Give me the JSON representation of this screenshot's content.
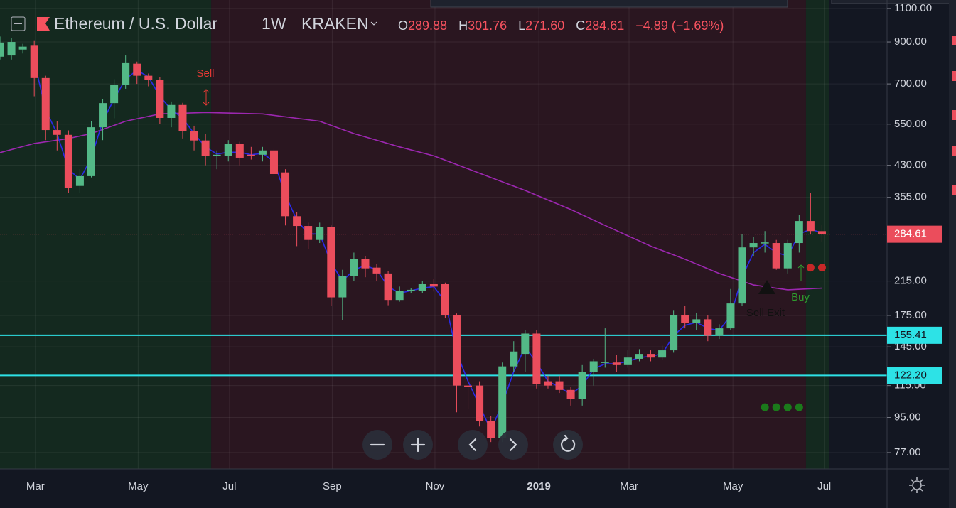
{
  "header": {
    "symbol": "Ethereum / U.S. Dollar",
    "interval": "1W",
    "exchange": "KRAKEN",
    "ohlc": [
      {
        "key": "O",
        "label": "289.88"
      },
      {
        "key": "H",
        "label": "301.76"
      },
      {
        "key": "L",
        "label": "271.60"
      },
      {
        "key": "C",
        "label": "284.61"
      }
    ],
    "change": "−4.89 (−1.69%)"
  },
  "chart_data": {
    "type": "candlestick",
    "yscale": "log",
    "grid": true,
    "up_color": "#53b987",
    "down_color": "#eb4d5c",
    "xlim": [
      0,
      77.7
    ],
    "ylim": [
      69.8,
      1157
    ],
    "yticks": [
      {
        "value": 1100,
        "label": "1100.00"
      },
      {
        "value": 900,
        "label": "900.00"
      },
      {
        "value": 700,
        "label": "700.00"
      },
      {
        "value": 550,
        "label": "550.00"
      },
      {
        "value": 430,
        "label": "430.00"
      },
      {
        "value": 355,
        "label": "355.00"
      },
      {
        "value": 215,
        "label": "215.00"
      },
      {
        "value": 175,
        "label": "175.00"
      },
      {
        "value": 145,
        "label": "145.00"
      },
      {
        "value": 115,
        "label": "115.00"
      },
      {
        "value": 95,
        "label": "95.00"
      },
      {
        "value": 77,
        "label": "77.00"
      }
    ],
    "xticks": [
      {
        "value": 3.1,
        "label": "Mar"
      },
      {
        "value": 12.1,
        "label": "May"
      },
      {
        "value": 20.1,
        "label": "Jul"
      },
      {
        "value": 29.1,
        "label": "Sep"
      },
      {
        "value": 38.1,
        "label": "Nov"
      },
      {
        "value": 47.2,
        "label": "2019"
      },
      {
        "value": 55.1,
        "label": "Mar"
      },
      {
        "value": 64.2,
        "label": "May"
      },
      {
        "value": 72.2,
        "label": "Jul"
      }
    ],
    "zones": [
      {
        "from": 0,
        "to": 18.5,
        "color": "#14291f"
      },
      {
        "from": 18.5,
        "to": 70.6,
        "color": "#2a1620"
      },
      {
        "from": 70.6,
        "to": 72.6,
        "color": "#14291f"
      }
    ],
    "candles": {
      "x": [
        0,
        1,
        2,
        3,
        4,
        5,
        6,
        7,
        8,
        9,
        10,
        11,
        12,
        13,
        14,
        15,
        16,
        17,
        18,
        19,
        20,
        21,
        22,
        23,
        24,
        25,
        26,
        27,
        28,
        29,
        30,
        31,
        32,
        33,
        34,
        35,
        36,
        37,
        38,
        39,
        40,
        41,
        42,
        43,
        44,
        45,
        46,
        47,
        48,
        49,
        50,
        51,
        52,
        53,
        54,
        55,
        56,
        57,
        58,
        59,
        60,
        61,
        62,
        63,
        64,
        65,
        66,
        67,
        68,
        69,
        70,
        71,
        72
      ],
      "open": [
        824,
        830,
        860,
        880,
        725,
        531,
        516,
        380,
        403,
        540,
        624,
        695,
        790,
        735,
        716,
        571,
        617,
        527,
        499,
        454,
        454,
        488,
        458,
        458,
        470,
        412,
        317,
        299,
        275,
        297,
        195,
        222,
        245,
        233,
        225,
        192,
        203,
        203,
        211,
        211,
        175,
        115,
        115,
        93,
        84,
        129,
        139,
        157,
        118,
        118,
        112,
        106,
        125,
        132,
        132,
        130,
        135,
        139,
        136,
        142,
        175,
        167,
        171,
        155,
        162,
        188,
        263,
        270,
        270,
        232,
        270,
        308,
        289.88
      ],
      "high": [
        930,
        920,
        890,
        905,
        735,
        560,
        530,
        420,
        560,
        640,
        720,
        830,
        800,
        745,
        730,
        630,
        625,
        545,
        520,
        470,
        500,
        495,
        480,
        480,
        475,
        420,
        325,
        305,
        305,
        300,
        230,
        255,
        250,
        238,
        228,
        208,
        206,
        215,
        218,
        213,
        177,
        120,
        118,
        96,
        132,
        150,
        160,
        160,
        122,
        122,
        114,
        130,
        135,
        162,
        138,
        142,
        143,
        142,
        146,
        180,
        185,
        178,
        175,
        166,
        205,
        285,
        280,
        290,
        275,
        275,
        320,
        365,
        301.76
      ],
      "low": [
        810,
        810,
        840,
        650,
        500,
        470,
        365,
        365,
        400,
        500,
        570,
        680,
        700,
        690,
        550,
        540,
        505,
        470,
        430,
        420,
        440,
        430,
        445,
        440,
        400,
        300,
        265,
        260,
        270,
        185,
        170,
        215,
        220,
        215,
        186,
        190,
        200,
        200,
        202,
        172,
        98,
        100,
        90,
        82,
        82,
        125,
        125,
        113,
        113,
        110,
        102,
        102,
        115,
        128,
        125,
        128,
        133,
        133,
        134,
        140,
        162,
        160,
        150,
        152,
        160,
        185,
        250,
        255,
        230,
        225,
        255,
        285,
        271.6
      ],
      "close": [
        897,
        900,
        875,
        725,
        531,
        516,
        375,
        403,
        540,
        624,
        695,
        796,
        735,
        716,
        571,
        617,
        527,
        499,
        454,
        458,
        488,
        450,
        454,
        470,
        408,
        317,
        299,
        275,
        297,
        195,
        222,
        245,
        232,
        225,
        192,
        203,
        204,
        211,
        208,
        175,
        115,
        114,
        93,
        84,
        129,
        141,
        157,
        116,
        115,
        112,
        106,
        125,
        133,
        132.5,
        130,
        136,
        139,
        136,
        142,
        175,
        167,
        171,
        155,
        162,
        188,
        263,
        270,
        271,
        232,
        270,
        308,
        290,
        284.61
      ]
    },
    "lines": [
      {
        "color": "#9c27b0",
        "x": [
          0,
          3,
          6,
          8,
          11,
          14,
          18,
          23,
          28,
          31,
          35,
          38,
          42,
          46,
          50,
          53,
          57,
          60,
          63,
          66,
          69,
          72
        ],
        "values": [
          464,
          490,
          505,
          520,
          560,
          585,
          590,
          585,
          560,
          520,
          480,
          455,
          410,
          370,
          330,
          300,
          265,
          245,
          225,
          210,
          204,
          206
        ]
      },
      {
        "color": "#2a2ae8",
        "x": [
          3,
          4,
          5,
          6,
          7,
          8,
          9,
          10,
          11,
          12,
          13,
          14,
          15,
          16,
          17,
          18,
          19,
          20,
          21,
          22,
          23,
          24,
          25,
          26,
          27,
          28,
          29,
          30,
          31,
          32,
          33,
          34,
          35,
          36,
          37,
          38,
          39,
          40,
          41,
          42,
          43,
          44,
          45,
          46,
          47,
          48,
          49,
          50,
          51,
          52,
          53,
          54,
          55,
          56,
          57,
          58,
          59,
          60,
          61,
          62,
          63,
          64,
          65,
          66,
          67,
          68,
          69,
          70,
          71,
          72
        ],
        "values": [
          800,
          600,
          520,
          420,
          395,
          450,
          560,
          640,
          720,
          760,
          730,
          650,
          600,
          570,
          520,
          480,
          460,
          465,
          465,
          458,
          462,
          440,
          360,
          310,
          285,
          285,
          240,
          215,
          230,
          236,
          230,
          208,
          200,
          203,
          206,
          208,
          190,
          140,
          118,
          102,
          88,
          103,
          125,
          145,
          132,
          118,
          114,
          109,
          115,
          127,
          131,
          131,
          133,
          136,
          137,
          139,
          155,
          165,
          168,
          162,
          160,
          175,
          220,
          255,
          268,
          255,
          250,
          285,
          293,
          287
        ]
      }
    ],
    "dots": [
      {
        "color": "#c62828",
        "x": [
          71,
          72
        ],
        "values": [
          233,
          233
        ]
      },
      {
        "color": "#1b7a1b",
        "x": [
          67,
          68,
          69,
          70
        ],
        "values": [
          101,
          101,
          101,
          101
        ]
      }
    ],
    "hlines": [
      {
        "value": 155.41,
        "label": "155.41",
        "color": "#2de2e6"
      },
      {
        "value": 122.2,
        "label": "122.20",
        "color": "#2de2e6"
      }
    ],
    "annotations": [
      {
        "text": "Sell",
        "color": "#e53935"
      },
      {
        "text": "Buy",
        "color": "#2e9c2e"
      },
      {
        "text": "Sell Exit",
        "color": "#111111"
      }
    ]
  }
}
